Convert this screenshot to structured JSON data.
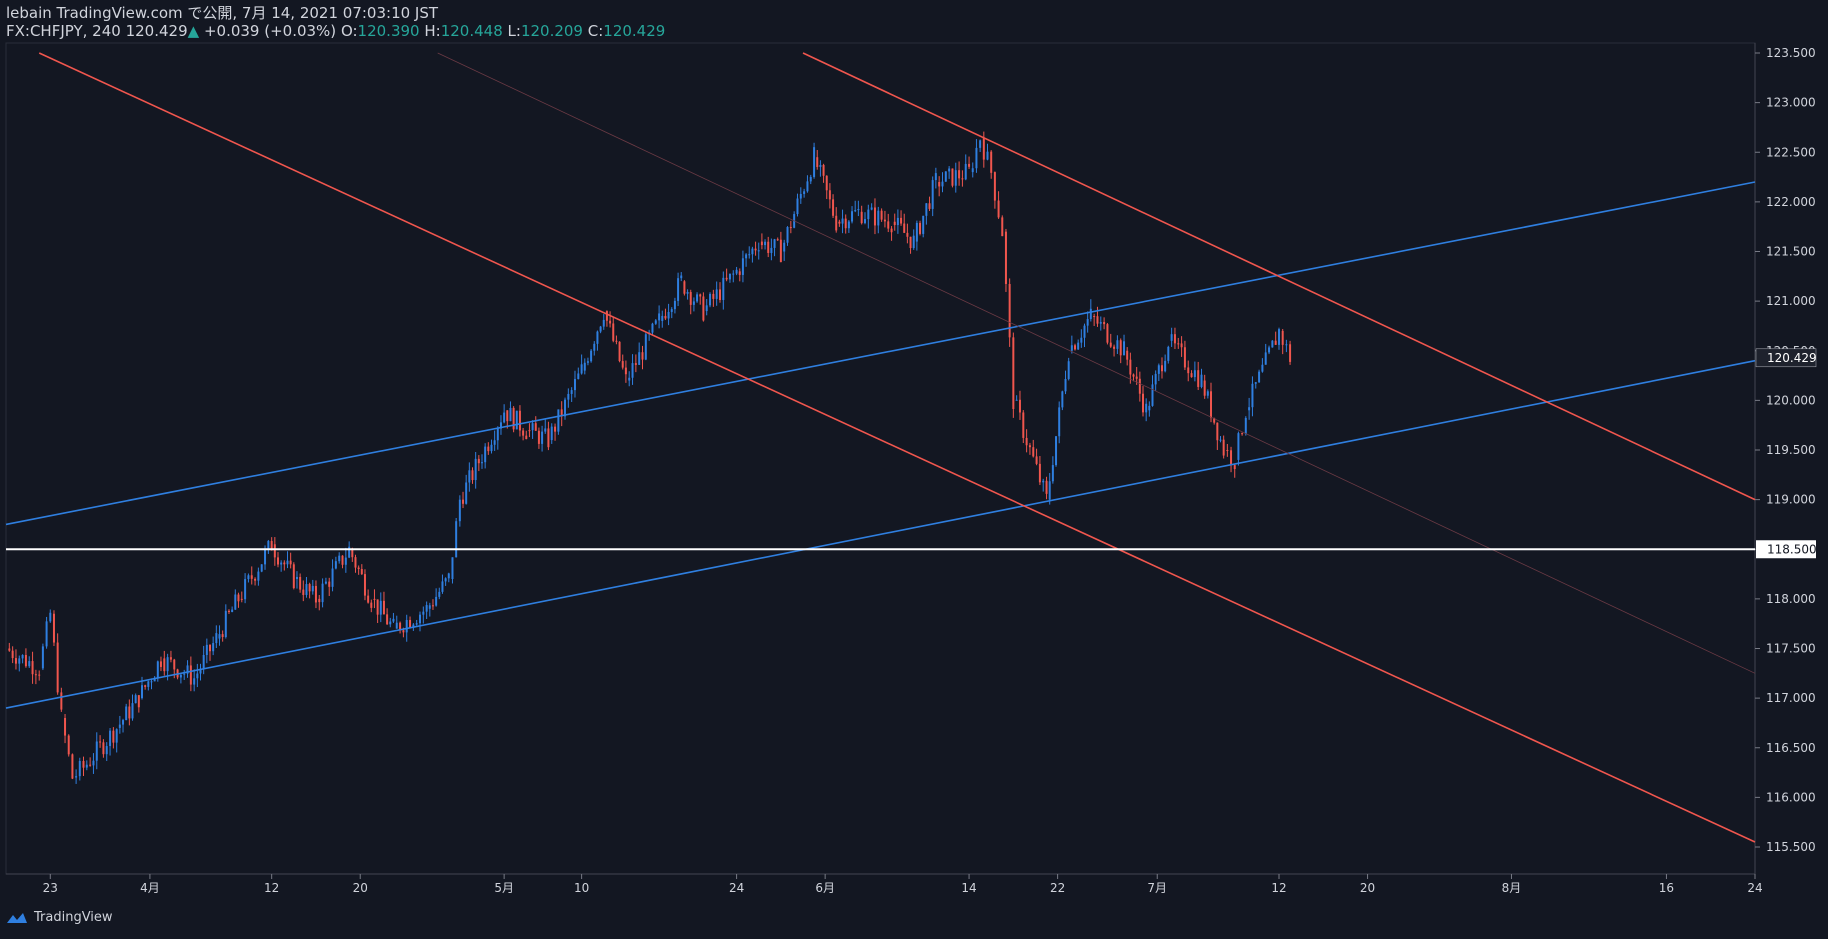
{
  "header": {
    "published": "lebain TradingView.com で公開, 7月 14, 2021 07:03:10 JST",
    "symbol": "FX:CHFJPY, 240",
    "last": "120.429",
    "change_arrow": "▲",
    "change": "+0.039 (+0.03%)",
    "o_label": "O:",
    "o_value": "120.390",
    "h_label": "H:",
    "h_value": "120.448",
    "l_label": "L:",
    "l_value": "120.209",
    "c_label": "C:",
    "c_value": "120.429"
  },
  "footer": {
    "brand": "TradingView",
    "logo_icon": "tradingview-logo-icon"
  },
  "colors": {
    "bg": "#131722",
    "up": "#2f7fe0",
    "down": "#f0564e",
    "axis": "#d1d4dc",
    "channel_blue": "#2f7fe0",
    "channel_red": "#f0564e",
    "hline": "#ffffff"
  },
  "chart_data": {
    "type": "candlestick",
    "symbol": "FX:CHFJPY",
    "timeframe_minutes": 240,
    "y_ticks": [
      "115.500",
      "116.000",
      "116.500",
      "117.000",
      "117.500",
      "118.000",
      "118.500",
      "119.000",
      "119.500",
      "120.000",
      "120.500",
      "121.000",
      "121.500",
      "122.000",
      "122.500",
      "123.000",
      "123.500"
    ],
    "x_ticks": [
      "23",
      "4月",
      "12",
      "20",
      "5月",
      "10",
      "24",
      "6月",
      "14",
      "22",
      "7月",
      "12",
      "20",
      "8月",
      "16",
      "24"
    ],
    "last_price_label": "120.429",
    "horizontal_level": {
      "price": 118.5,
      "label": "118.500"
    },
    "price_path": [
      {
        "date": "2021-03-19",
        "close": 117.5
      },
      {
        "date": "2021-03-22",
        "close": 117.3
      },
      {
        "date": "2021-03-23",
        "close": 117.85
      },
      {
        "date": "2021-03-24",
        "close": 116.8
      },
      {
        "date": "2021-03-25",
        "close": 116.2
      },
      {
        "date": "2021-03-26",
        "close": 116.3
      },
      {
        "date": "2021-03-29",
        "close": 116.7
      },
      {
        "date": "2021-03-31",
        "close": 117.0
      },
      {
        "date": "2021-04-02",
        "close": 117.4
      },
      {
        "date": "2021-04-05",
        "close": 117.2
      },
      {
        "date": "2021-04-07",
        "close": 117.6
      },
      {
        "date": "2021-04-09",
        "close": 118.0
      },
      {
        "date": "2021-04-12",
        "close": 118.55
      },
      {
        "date": "2021-04-14",
        "close": 118.2
      },
      {
        "date": "2021-04-16",
        "close": 118.0
      },
      {
        "date": "2021-04-19",
        "close": 118.5
      },
      {
        "date": "2021-04-21",
        "close": 118.0
      },
      {
        "date": "2021-04-23",
        "close": 117.7
      },
      {
        "date": "2021-04-26",
        "close": 117.9
      },
      {
        "date": "2021-04-28",
        "close": 118.2
      },
      {
        "date": "2021-04-29",
        "close": 119.0
      },
      {
        "date": "2021-05-03",
        "close": 119.9
      },
      {
        "date": "2021-05-05",
        "close": 119.7
      },
      {
        "date": "2021-05-07",
        "close": 119.6
      },
      {
        "date": "2021-05-10",
        "close": 120.3
      },
      {
        "date": "2021-05-12",
        "close": 120.9
      },
      {
        "date": "2021-05-14",
        "close": 120.2
      },
      {
        "date": "2021-05-17",
        "close": 120.8
      },
      {
        "date": "2021-05-19",
        "close": 121.2
      },
      {
        "date": "2021-05-21",
        "close": 120.9
      },
      {
        "date": "2021-05-24",
        "close": 121.3
      },
      {
        "date": "2021-05-26",
        "close": 121.6
      },
      {
        "date": "2021-05-28",
        "close": 121.5
      },
      {
        "date": "2021-05-31",
        "close": 122.45
      },
      {
        "date": "2021-06-02",
        "close": 121.8
      },
      {
        "date": "2021-06-04",
        "close": 121.9
      },
      {
        "date": "2021-06-07",
        "close": 121.8
      },
      {
        "date": "2021-06-09",
        "close": 121.6
      },
      {
        "date": "2021-06-11",
        "close": 122.2
      },
      {
        "date": "2021-06-14",
        "close": 122.3
      },
      {
        "date": "2021-06-15",
        "close": 122.65
      },
      {
        "date": "2021-06-16",
        "close": 122.3
      },
      {
        "date": "2021-06-17",
        "close": 121.7
      },
      {
        "date": "2021-06-18",
        "close": 120.0
      },
      {
        "date": "2021-06-21",
        "close": 119.0
      },
      {
        "date": "2021-06-23",
        "close": 120.5
      },
      {
        "date": "2021-06-25",
        "close": 120.85
      },
      {
        "date": "2021-06-28",
        "close": 120.5
      },
      {
        "date": "2021-06-30",
        "close": 119.9
      },
      {
        "date": "2021-07-02",
        "close": 120.6
      },
      {
        "date": "2021-07-05",
        "close": 120.2
      },
      {
        "date": "2021-07-07",
        "close": 119.5
      },
      {
        "date": "2021-07-08",
        "close": 119.4
      },
      {
        "date": "2021-07-09",
        "close": 119.9
      },
      {
        "date": "2021-07-12",
        "close": 120.7
      },
      {
        "date": "2021-07-13",
        "close": 120.43
      }
    ],
    "trendlines": [
      {
        "name": "",
        "color": "#2f7fe0",
        "points": [
          {
            "date": "2021-03-19",
            "price": 118.75
          },
          {
            "date": "2021-08-24",
            "price": 122.2
          }
        ]
      },
      {
        "name": "",
        "color": "#2f7fe0",
        "points": [
          {
            "date": "2021-03-19",
            "price": 116.9
          },
          {
            "date": "2021-08-24",
            "price": 120.4
          }
        ]
      },
      {
        "name": "",
        "color": "#f0564e",
        "points": [
          {
            "date": "2021-03-22",
            "price": 123.5
          },
          {
            "date": "2021-08-24",
            "price": 115.55
          }
        ]
      },
      {
        "name": "",
        "color": "#f0564e",
        "points": [
          {
            "date": "2021-05-30",
            "price": 123.5
          },
          {
            "date": "2021-08-24",
            "price": 119.0
          }
        ]
      },
      {
        "name": "",
        "color": "#6b3a44",
        "points": [
          {
            "date": "2021-04-27",
            "price": 123.5
          },
          {
            "date": "2021-08-24",
            "price": 117.25
          }
        ]
      }
    ]
  }
}
